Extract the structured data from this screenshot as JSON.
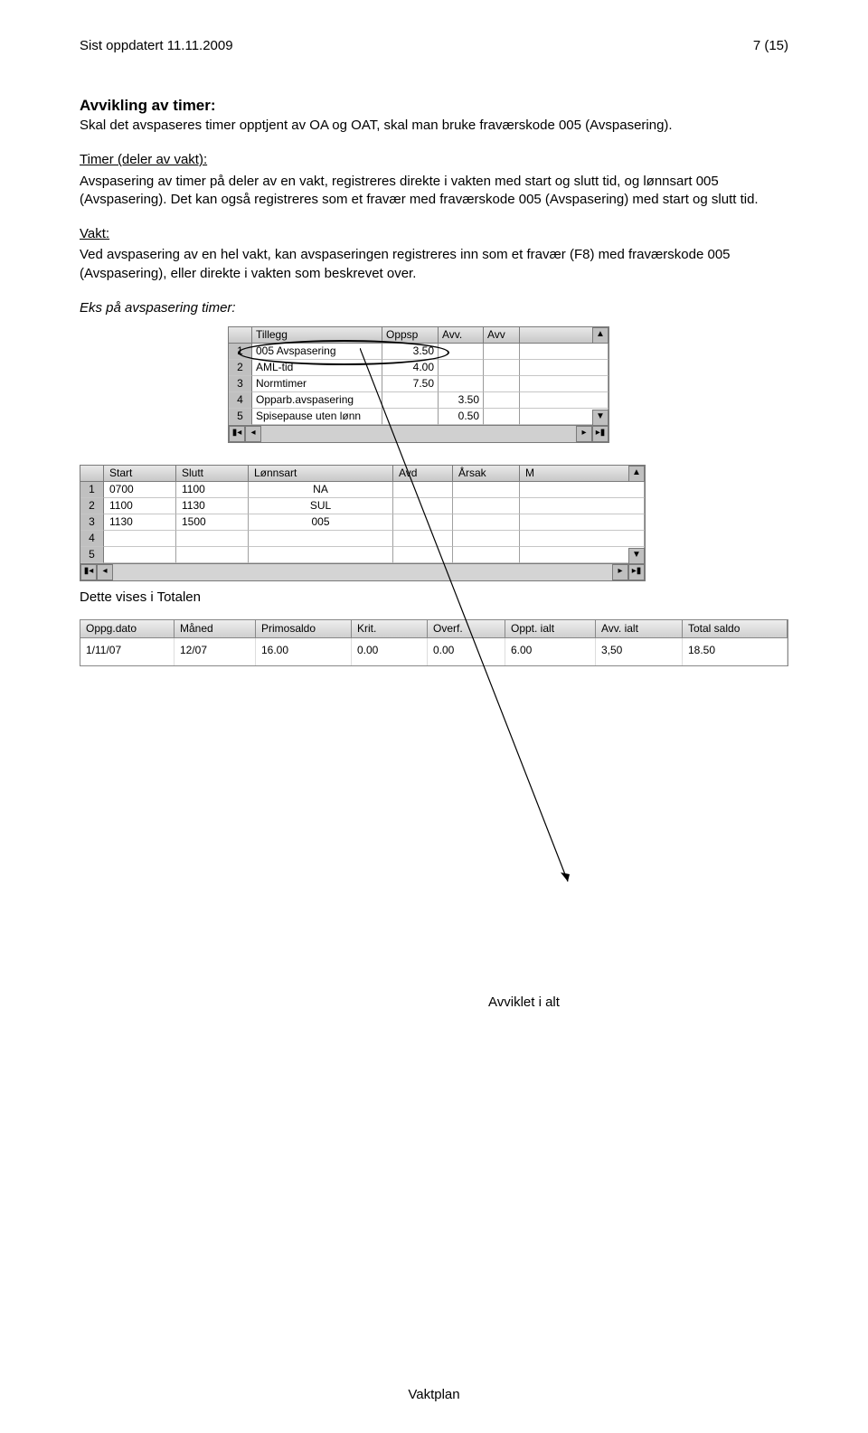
{
  "header": {
    "left": "Sist oppdatert 11.11.2009",
    "right": "7 (15)"
  },
  "section": {
    "title": "Avvikling av timer:",
    "p1": "Skal det avspaseres timer opptjent av OA og OAT, skal man bruke fraværskode 005 (Avspasering).",
    "h_timer": "Timer (deler av vakt):",
    "p_timer": "Avspasering av timer på deler av en vakt, registreres direkte i vakten med start og slutt tid, og lønnsart 005 (Avspasering). Det kan også registreres som et fravær med fraværskode 005 (Avspasering) med start og slutt tid.",
    "h_vakt": "Vakt:",
    "p_vakt": "Ved avspasering av en hel vakt, kan avspaseringen registreres inn som et fravær (F8) med fraværskode 005 (Avspasering), eller direkte i vakten som beskrevet over.",
    "eks": "Eks på avspasering timer:"
  },
  "mini": {
    "headers": [
      "",
      "Tillegg",
      "Oppsp",
      "Avv.",
      "Avv"
    ],
    "rows": [
      {
        "n": "1",
        "tillegg": "005 Avspasering",
        "opp": "3.50",
        "avv": "",
        "avv2": ""
      },
      {
        "n": "2",
        "tillegg": "AML-tid",
        "opp": "4.00",
        "avv": "",
        "avv2": ""
      },
      {
        "n": "3",
        "tillegg": "Normtimer",
        "opp": "7.50",
        "avv": "",
        "avv2": ""
      },
      {
        "n": "4",
        "tillegg": "Opparb.avspasering",
        "opp": "",
        "avv": "3.50",
        "avv2": ""
      },
      {
        "n": "5",
        "tillegg": "Spisepause uten lønn",
        "opp": "",
        "avv": "0.50",
        "avv2": ""
      }
    ]
  },
  "wide": {
    "headers": [
      "",
      "Start",
      "Slutt",
      "Lønnsart",
      "Avd",
      "Årsak",
      "M"
    ],
    "rows": [
      {
        "n": "1",
        "start": "0700",
        "slutt": "1100",
        "la": "NA",
        "avd": "",
        "arsak": "",
        "m": ""
      },
      {
        "n": "2",
        "start": "1100",
        "slutt": "1130",
        "la": "SUL",
        "avd": "",
        "arsak": "",
        "m": ""
      },
      {
        "n": "3",
        "start": "1130",
        "slutt": "1500",
        "la": "005",
        "avd": "",
        "arsak": "",
        "m": ""
      },
      {
        "n": "4",
        "start": "",
        "slutt": "",
        "la": "",
        "avd": "",
        "arsak": "",
        "m": ""
      },
      {
        "n": "5",
        "start": "",
        "slutt": "",
        "la": "",
        "avd": "",
        "arsak": "",
        "m": ""
      }
    ]
  },
  "caption_totalen": "Dette vises i Totalen",
  "totals": {
    "headers": [
      "Oppg.dato",
      "Måned",
      "Primosaldo",
      "Krit.",
      "Overf.",
      "Oppt. ialt",
      "Avv. ialt",
      "Total saldo"
    ],
    "row": [
      "1/11/07",
      "12/07",
      "16.00",
      "0.00",
      "0.00",
      "6.00",
      "3,50",
      "18.50"
    ]
  },
  "avviklet_label": "Avviklet i alt",
  "footer": "Vaktplan"
}
